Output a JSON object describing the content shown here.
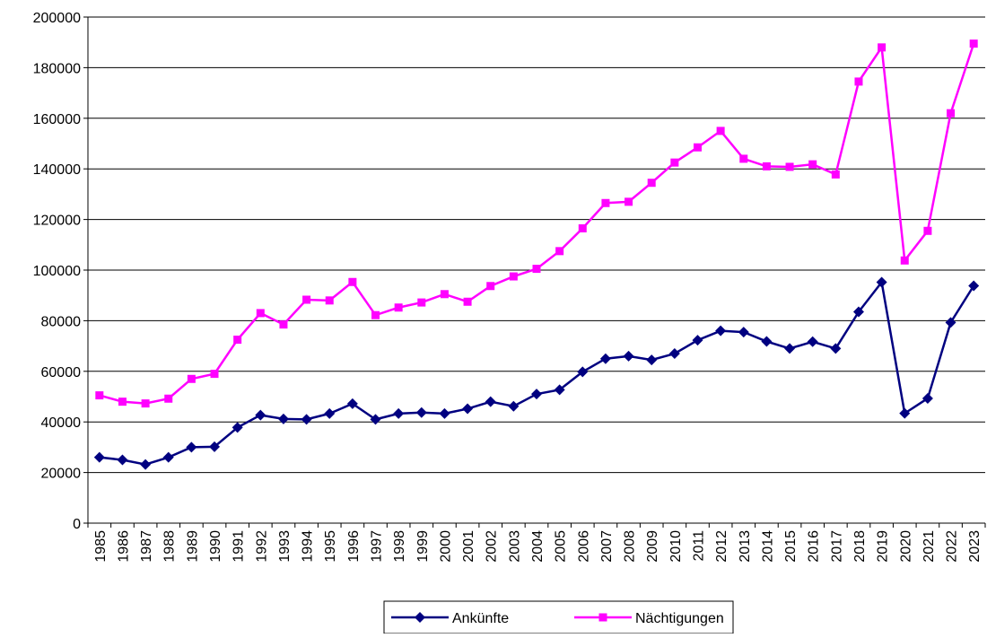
{
  "chart_data": {
    "type": "line",
    "categories": [
      "1985",
      "1986",
      "1987",
      "1988",
      "1989",
      "1990",
      "1991",
      "1992",
      "1993",
      "1994",
      "1995",
      "1996",
      "1997",
      "1998",
      "1999",
      "2000",
      "2001",
      "2002",
      "2003",
      "2004",
      "2005",
      "2006",
      "2007",
      "2008",
      "2009",
      "2010",
      "2011",
      "2012",
      "2013",
      "2014",
      "2015",
      "2016",
      "2017",
      "2018",
      "2019",
      "2020",
      "2021",
      "2022",
      "2023"
    ],
    "series": [
      {
        "name": "Ankünfte",
        "color": "#000080",
        "marker": "diamond",
        "values": [
          26000,
          25000,
          23200,
          26000,
          30000,
          30200,
          37800,
          42700,
          41200,
          41000,
          43300,
          47200,
          41000,
          43300,
          43700,
          43300,
          45200,
          48000,
          46200,
          51000,
          52700,
          59800,
          65000,
          66000,
          64500,
          67000,
          72300,
          76000,
          75500,
          71800,
          69000,
          71700,
          69000,
          83500,
          95200,
          43400,
          49300,
          79300,
          93800
        ]
      },
      {
        "name": "Nächtigungen",
        "color": "#ff00ff",
        "marker": "square",
        "values": [
          50500,
          48000,
          47300,
          49200,
          57000,
          59000,
          72500,
          83000,
          78500,
          88300,
          88000,
          95300,
          82200,
          85200,
          87200,
          90500,
          87500,
          93700,
          97500,
          100500,
          107500,
          116500,
          126500,
          127000,
          134500,
          142500,
          148500,
          155000,
          144000,
          141000,
          140800,
          141800,
          137800,
          174500,
          188000,
          103800,
          115500,
          162000,
          189500
        ]
      }
    ],
    "ylim": [
      0,
      200000
    ],
    "yticks": [
      0,
      20000,
      40000,
      60000,
      80000,
      100000,
      120000,
      140000,
      160000,
      180000,
      200000
    ],
    "grid": true,
    "legend": "bottom"
  }
}
